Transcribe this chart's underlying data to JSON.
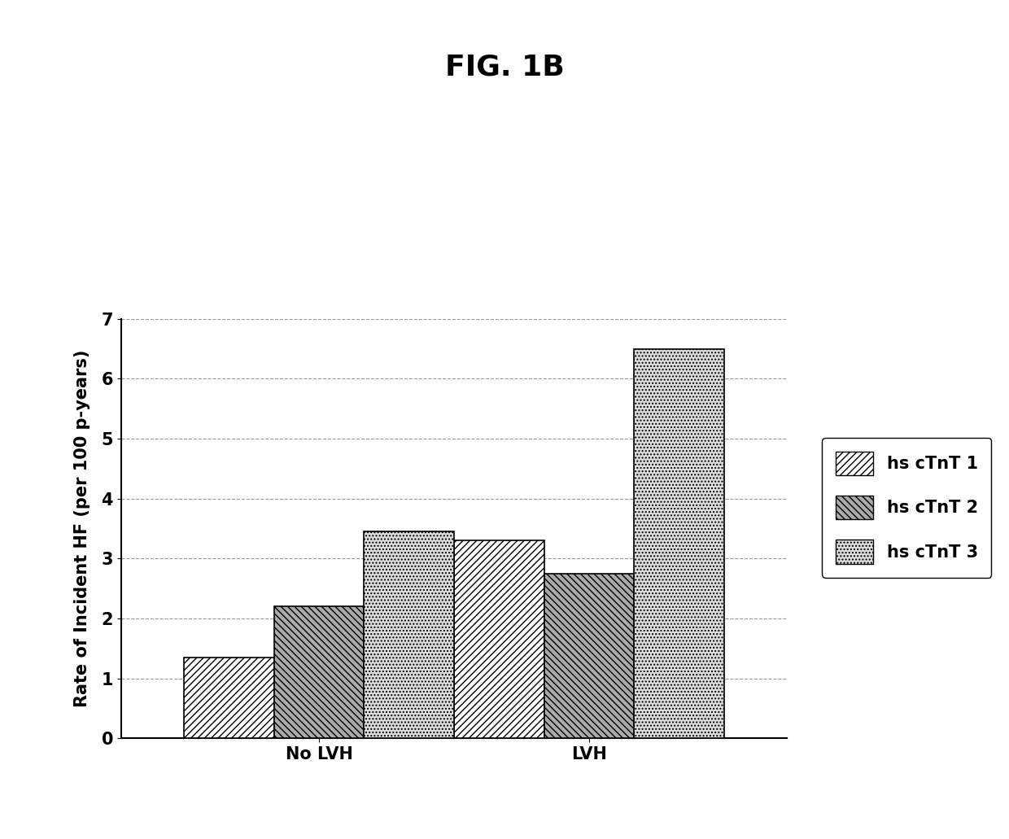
{
  "title": "FIG. 1B",
  "ylabel": "Rate of Incident HF (per 100 p-years)",
  "groups": [
    "No LVH",
    "LVH"
  ],
  "series_labels": [
    "hs cTnT 1",
    "hs cTnT 2",
    "hs cTnT 3"
  ],
  "values": [
    [
      1.35,
      2.2,
      3.45
    ],
    [
      3.3,
      2.75,
      6.5
    ]
  ],
  "ylim": [
    0,
    7
  ],
  "yticks": [
    0,
    1,
    2,
    3,
    4,
    5,
    6,
    7
  ],
  "background_color": "#ffffff",
  "bar_edge_color": "#000000",
  "grid_color": "#999999",
  "title_fontsize": 26,
  "axis_label_fontsize": 15,
  "tick_fontsize": 15,
  "legend_fontsize": 15,
  "bar_width": 0.25,
  "group_positions": [
    0.4,
    1.15
  ]
}
